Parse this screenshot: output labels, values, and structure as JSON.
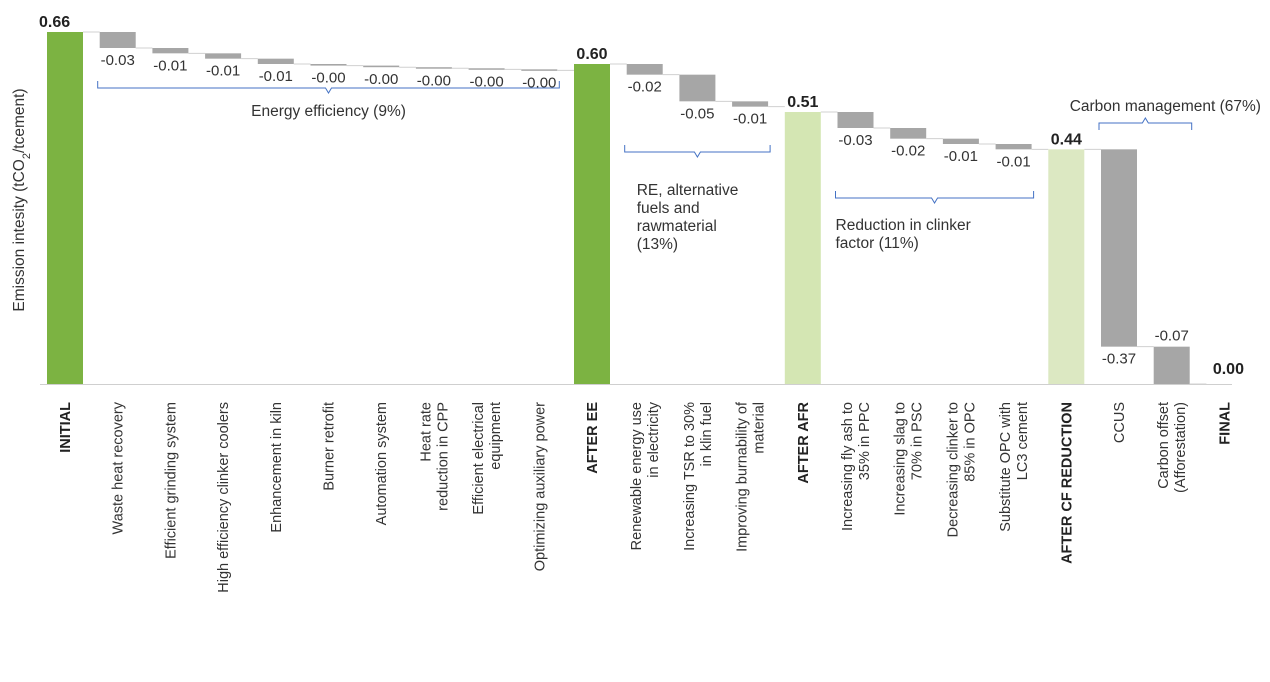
{
  "chart_data": {
    "type": "bar",
    "subtype": "waterfall",
    "ylabel_parts": [
      "Emission intesity (tCO",
      "2",
      "/tcement)"
    ],
    "ylim": [
      0,
      0.66
    ],
    "categories": [
      {
        "label": [
          "INITIAL"
        ],
        "value": 0.66,
        "label_text": "0.66",
        "kind": "total",
        "color": "#7cb342"
      },
      {
        "label": [
          "Waste heat recovery"
        ],
        "value": -0.03,
        "label_text": "-0.03",
        "kind": "delta"
      },
      {
        "label": [
          "Efficient grinding system"
        ],
        "value": -0.01,
        "label_text": "-0.01",
        "kind": "delta"
      },
      {
        "label": [
          "High efficiency clinker coolers"
        ],
        "value": -0.01,
        "label_text": "-0.01",
        "kind": "delta"
      },
      {
        "label": [
          "Enhancement in kiln"
        ],
        "value": -0.01,
        "label_text": "-0.01",
        "kind": "delta"
      },
      {
        "label": [
          "Burner retrofit"
        ],
        "value": -0.003,
        "label_text": "-0.00",
        "kind": "delta"
      },
      {
        "label": [
          "Automation system"
        ],
        "value": -0.003,
        "label_text": "-0.00",
        "kind": "delta"
      },
      {
        "label": [
          "Heat rate",
          "reduction in CPP"
        ],
        "value": -0.002,
        "label_text": "-0.00",
        "kind": "delta"
      },
      {
        "label": [
          "Efficient electrical",
          "equipment"
        ],
        "value": -0.002,
        "label_text": "-0.00",
        "kind": "delta"
      },
      {
        "label": [
          "Optimizing auxiliary power"
        ],
        "value": -0.002,
        "label_text": "-0.00",
        "kind": "delta"
      },
      {
        "label": [
          "AFTER EE"
        ],
        "value": 0.6,
        "label_text": "0.60",
        "kind": "total",
        "color": "#7cb342"
      },
      {
        "label": [
          "Renewable energy use",
          "in electricity"
        ],
        "value": -0.02,
        "label_text": "-0.02",
        "kind": "delta"
      },
      {
        "label": [
          "Increasing TSR to 30%",
          "in klin fuel"
        ],
        "value": -0.05,
        "label_text": "-0.05",
        "kind": "delta"
      },
      {
        "label": [
          "Improving burnability of",
          "material"
        ],
        "value": -0.01,
        "label_text": "-0.01",
        "kind": "delta"
      },
      {
        "label": [
          "AFTER AFR"
        ],
        "value": 0.51,
        "label_text": "0.51",
        "kind": "total",
        "color": "#d4e6b3"
      },
      {
        "label": [
          "Increasing fly ash to",
          "35% in PPC"
        ],
        "value": -0.03,
        "label_text": "-0.03",
        "kind": "delta"
      },
      {
        "label": [
          "Increasing slag to",
          "70% in PSC"
        ],
        "value": -0.02,
        "label_text": "-0.02",
        "kind": "delta"
      },
      {
        "label": [
          "Decreasing clinker to",
          "85% in OPC"
        ],
        "value": -0.01,
        "label_text": "-0.01",
        "kind": "delta"
      },
      {
        "label": [
          "Substitute OPC with",
          "LC3 cement"
        ],
        "value": -0.01,
        "label_text": "-0.01",
        "kind": "delta"
      },
      {
        "label": [
          "AFTER CF REDUCTION"
        ],
        "value": 0.44,
        "label_text": "0.44",
        "kind": "total",
        "color": "#dce8c2"
      },
      {
        "label": [
          "CCUS"
        ],
        "value": -0.37,
        "label_text": "-0.37",
        "kind": "delta"
      },
      {
        "label": [
          "Carbon offset",
          "(Afforestation)"
        ],
        "value": -0.07,
        "label_text": "-0.07",
        "kind": "delta"
      },
      {
        "label": [
          "FINAL"
        ],
        "value": 0.0,
        "label_text": "0.00",
        "kind": "total",
        "color": "#7cb342"
      }
    ],
    "groups": [
      {
        "label": [
          "Energy efficiency (9%)"
        ],
        "from": 1,
        "to": 9
      },
      {
        "label": [
          "RE, alternative",
          "fuels and",
          "rawmaterial",
          "(13%)"
        ],
        "from": 11,
        "to": 13
      },
      {
        "label": [
          "Reduction in clinker",
          "factor (11%)"
        ],
        "from": 15,
        "to": 18
      },
      {
        "label": [
          "Carbon management (67%)"
        ],
        "from": 20,
        "to": 21
      }
    ],
    "delta_color": "#a6a6a6",
    "bracket_color": "#4472c4",
    "grid": false,
    "legend": "none"
  }
}
